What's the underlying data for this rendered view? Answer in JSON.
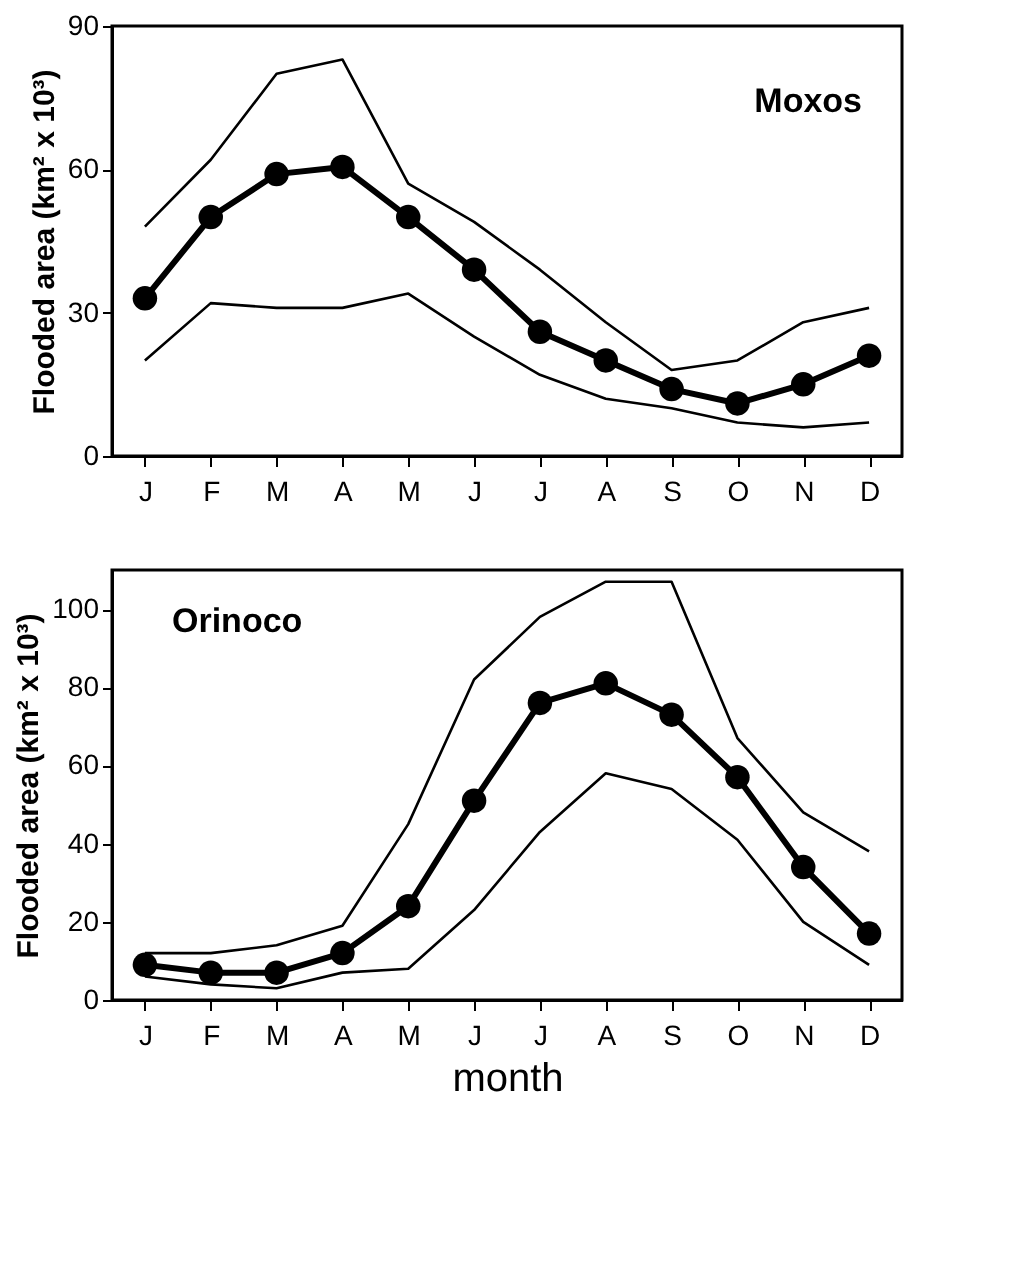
{
  "chart_data": [
    {
      "type": "line",
      "annotations": [
        "Moxos"
      ],
      "ylabel": "Flooded area (km² x 10³)",
      "categories": [
        "J",
        "F",
        "M",
        "A",
        "M",
        "J",
        "J",
        "A",
        "S",
        "O",
        "N",
        "D"
      ],
      "ylim": [
        0,
        90
      ],
      "yticks": [
        0,
        30,
        60,
        90
      ],
      "grid": false,
      "series": [
        {
          "color": "#000000",
          "marker": "none",
          "values": [
            48,
            62,
            80,
            83,
            57,
            49,
            39,
            28,
            18,
            20,
            28,
            31
          ]
        },
        {
          "color": "#000000",
          "marker": "none",
          "values": [
            20,
            32,
            31,
            31,
            34,
            25,
            17,
            12,
            10,
            7,
            6,
            7
          ]
        },
        {
          "color": "#000000",
          "marker": "circle",
          "values": [
            33,
            50,
            59,
            60.5,
            50,
            39,
            26,
            20,
            14,
            11,
            15,
            21
          ]
        }
      ]
    },
    {
      "type": "line",
      "annotations": [
        "Orinoco"
      ],
      "ylabel": "Flooded area (km² x 10³)",
      "xlabel": "month",
      "categories": [
        "J",
        "F",
        "M",
        "A",
        "M",
        "J",
        "J",
        "A",
        "S",
        "O",
        "N",
        "D"
      ],
      "ylim": [
        0,
        110
      ],
      "yticks": [
        0,
        20,
        40,
        60,
        80,
        100
      ],
      "grid": false,
      "series": [
        {
          "color": "#000000",
          "marker": "none",
          "values": [
            12,
            12,
            14,
            19,
            45,
            82,
            98,
            107,
            107,
            67,
            48,
            38
          ]
        },
        {
          "color": "#000000",
          "marker": "none",
          "values": [
            6,
            4,
            3,
            7,
            8,
            23,
            43,
            58,
            54,
            41,
            20,
            9
          ]
        },
        {
          "color": "#000000",
          "marker": "circle",
          "values": [
            9,
            7,
            7,
            12,
            24,
            51,
            76,
            81,
            73,
            57,
            34,
            17
          ]
        }
      ]
    }
  ]
}
